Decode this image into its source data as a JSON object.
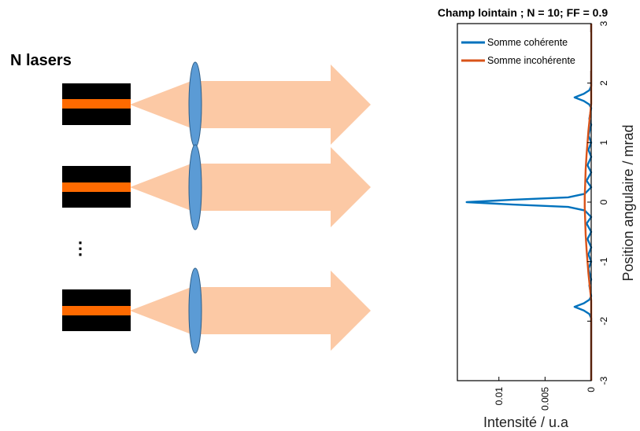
{
  "diagram": {
    "heading": "N lasers",
    "ellipsis": "⋮",
    "laser_count_drawn": 3,
    "colors": {
      "laser_housing": "#000000",
      "laser_emitter": "#ff6a00",
      "beam": "#fcc9a5",
      "lens_fill": "#5b9bd5",
      "lens_stroke": "#2e5f8a"
    }
  },
  "chart_data": {
    "type": "line",
    "orientation": "horizontal",
    "title": "Champ lointain ; N = 10; FF = 0.9",
    "xlabel": "Intensité / u.a",
    "ylabel": "Position angulaire / mrad",
    "x_reversed": true,
    "xlim": [
      0,
      0.0145
    ],
    "ylim": [
      -3,
      3
    ],
    "x_ticks": [
      0.01,
      0.005,
      0
    ],
    "x_tick_labels": [
      "0.01",
      "0.005",
      "0"
    ],
    "y_ticks": [
      3,
      2,
      1,
      0,
      -1,
      -2,
      -3
    ],
    "y_tick_labels": [
      "3",
      "2",
      "1",
      "0",
      "-1",
      "-2",
      "-3"
    ],
    "legend_position": "top",
    "series": [
      {
        "name": "Somme cohérente",
        "color": "#0072bd",
        "points": [
          [
            0,
            3
          ],
          [
            0,
            1.95
          ],
          [
            0.0002,
            1.88
          ],
          [
            0.0008,
            1.82
          ],
          [
            0.0018,
            1.76
          ],
          [
            0.0008,
            1.7
          ],
          [
            0.0002,
            1.64
          ],
          [
            0,
            1.58
          ],
          [
            0.0002,
            1.4
          ],
          [
            0,
            1.3
          ],
          [
            0.0003,
            1.12
          ],
          [
            0,
            1.0
          ],
          [
            0.0003,
            0.88
          ],
          [
            0,
            0.76
          ],
          [
            0.0004,
            0.62
          ],
          [
            0,
            0.5
          ],
          [
            0.0005,
            0.36
          ],
          [
            0,
            0.25
          ],
          [
            0.0007,
            0.14
          ],
          [
            0.0025,
            0.08
          ],
          [
            0.0085,
            0.04
          ],
          [
            0.0135,
            0
          ],
          [
            0.0085,
            -0.04
          ],
          [
            0.0025,
            -0.08
          ],
          [
            0.0007,
            -0.14
          ],
          [
            0,
            -0.25
          ],
          [
            0.0005,
            -0.36
          ],
          [
            0,
            -0.5
          ],
          [
            0.0004,
            -0.62
          ],
          [
            0,
            -0.76
          ],
          [
            0.0003,
            -0.88
          ],
          [
            0,
            -1.0
          ],
          [
            0.0003,
            -1.12
          ],
          [
            0,
            -1.3
          ],
          [
            0.0002,
            -1.4
          ],
          [
            0,
            -1.58
          ],
          [
            0.0002,
            -1.64
          ],
          [
            0.0008,
            -1.7
          ],
          [
            0.0018,
            -1.76
          ],
          [
            0.0008,
            -1.82
          ],
          [
            0.0002,
            -1.88
          ],
          [
            0,
            -1.95
          ],
          [
            0,
            -3
          ]
        ]
      },
      {
        "name": "Somme incohérente",
        "color": "#d95319",
        "points": [
          [
            0,
            3
          ],
          [
            0,
            1.65
          ],
          [
            0.0001,
            1.5
          ],
          [
            0.0002,
            1.35
          ],
          [
            0.0003,
            1.2
          ],
          [
            0.0004,
            1.0
          ],
          [
            0.0005,
            0.8
          ],
          [
            0.0006,
            0.55
          ],
          [
            0.00065,
            0.3
          ],
          [
            0.0007,
            0.1
          ],
          [
            0.0007,
            0
          ],
          [
            0.0007,
            -0.1
          ],
          [
            0.00065,
            -0.3
          ],
          [
            0.0006,
            -0.55
          ],
          [
            0.0005,
            -0.8
          ],
          [
            0.0004,
            -1.0
          ],
          [
            0.0003,
            -1.2
          ],
          [
            0.0002,
            -1.35
          ],
          [
            0.0001,
            -1.5
          ],
          [
            0,
            -1.65
          ],
          [
            0,
            -3
          ]
        ]
      }
    ]
  }
}
